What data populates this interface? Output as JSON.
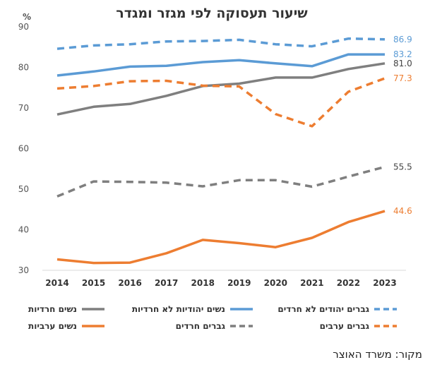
{
  "chart_data": {
    "type": "line",
    "title": "שיעור תעסוקה לפי מגזר ומגדר",
    "ylabel": "%",
    "ylim": [
      30,
      90
    ],
    "yticks": [
      30,
      40,
      50,
      60,
      70,
      80,
      90
    ],
    "categories": [
      "2014",
      "2015",
      "2016",
      "2017",
      "2018",
      "2019",
      "2020",
      "2021",
      "2022",
      "2023"
    ],
    "grid": false,
    "legend_position": "bottom",
    "series": [
      {
        "name": "גברים יהודים לא חרדים",
        "color": "#5b9bd5",
        "style": "dashed",
        "values": [
          84.6,
          85.4,
          85.7,
          86.4,
          86.5,
          86.8,
          85.7,
          85.2,
          87.1,
          86.9
        ],
        "end_label": "86.9"
      },
      {
        "name": "נשים יהודיות לא חרדיות",
        "color": "#5b9bd5",
        "style": "solid",
        "values": [
          78.0,
          79.0,
          80.2,
          80.4,
          81.3,
          81.8,
          81.0,
          80.3,
          83.2,
          83.2
        ],
        "end_label": "83.2"
      },
      {
        "name": "נשים חרדיות",
        "color": "#7f7f7f",
        "style": "solid",
        "values": [
          68.4,
          70.3,
          71.0,
          73.0,
          75.4,
          76.0,
          77.5,
          77.5,
          79.6,
          81.0
        ],
        "end_label": "81.0"
      },
      {
        "name": "גברים ערבים",
        "color": "#ed7d31",
        "style": "dashed",
        "values": [
          74.8,
          75.4,
          76.6,
          76.7,
          75.5,
          75.3,
          68.5,
          65.5,
          74.0,
          77.3
        ],
        "end_label": "77.3"
      },
      {
        "name": "גברים חרדים",
        "color": "#7f7f7f",
        "style": "dashed",
        "values": [
          48.2,
          51.9,
          51.8,
          51.6,
          50.7,
          52.2,
          52.2,
          50.6,
          53.1,
          55.5
        ],
        "end_label": "55.5"
      },
      {
        "name": "נשים ערביות",
        "color": "#ed7d31",
        "style": "solid",
        "values": [
          32.7,
          31.8,
          31.9,
          34.2,
          37.5,
          36.7,
          35.7,
          38.0,
          41.9,
          44.6
        ],
        "end_label": "44.6"
      }
    ]
  },
  "source": "מקור: משרד האוצר"
}
